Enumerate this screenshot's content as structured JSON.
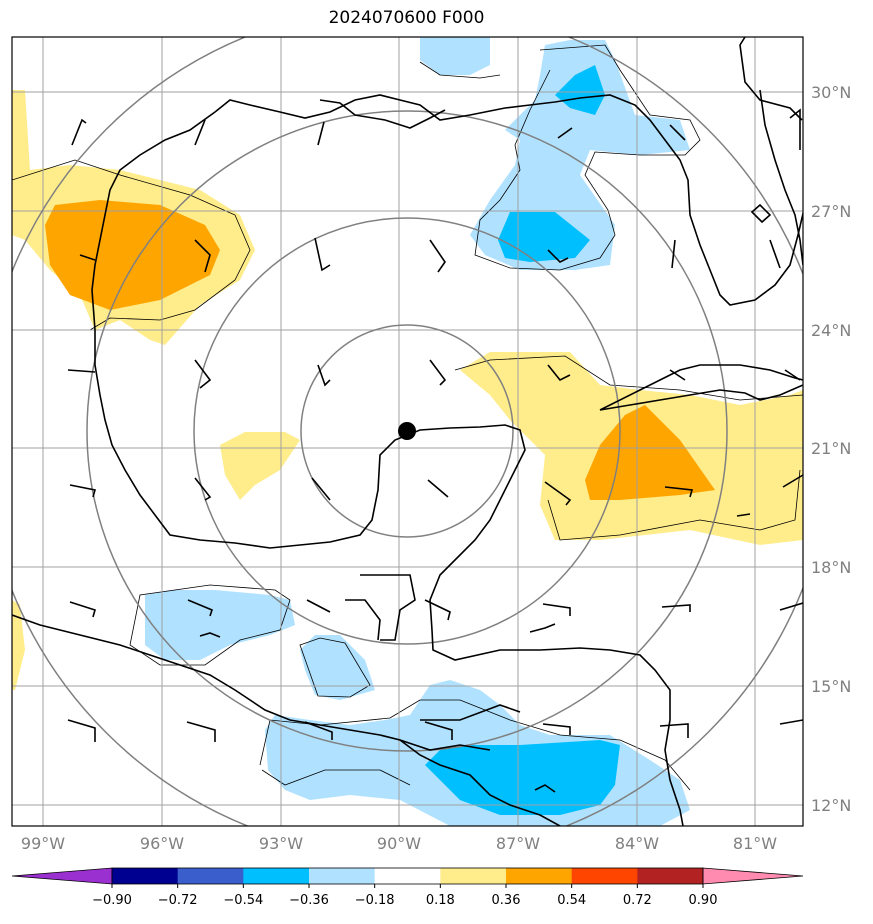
{
  "title": "2024070600 F000",
  "lat_labels": [
    "30°N",
    "27°N",
    "24°N",
    "21°N",
    "18°N",
    "15°N",
    "12°N"
  ],
  "lon_labels": [
    "99°W",
    "96°W",
    "93°W",
    "90°W",
    "87°W",
    "84°W",
    "81°W"
  ],
  "colorbar": {
    "ticks": [
      "−0.90",
      "−0.72",
      "−0.54",
      "−0.36",
      "−0.18",
      "0.18",
      "0.36",
      "0.54",
      "0.72",
      "0.90"
    ],
    "colors": [
      "#9b30d0",
      "#000090",
      "#3a5fcd",
      "#00bfff",
      "#b0e2ff",
      "#ffffff",
      "#ffec8b",
      "#ffa500",
      "#ff4500",
      "#b22222",
      "#ff8cb0"
    ]
  },
  "map": {
    "center_marker": "storm-center",
    "shading_colors": {
      "light_blue": "#b0e2ff",
      "blue": "#00bfff",
      "light_yellow": "#ffec8b",
      "orange": "#ffa500"
    }
  }
}
